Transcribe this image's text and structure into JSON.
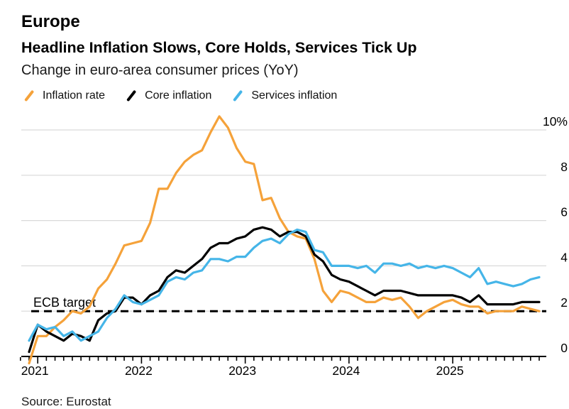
{
  "header": {
    "kicker": "Europe",
    "title": "Headline Inflation Slows, Core Holds, Services Tick Up",
    "subtitle": "Change in euro-area consumer prices (YoY)"
  },
  "legend": {
    "items": [
      {
        "label": "Inflation rate",
        "color": "#F5A23A"
      },
      {
        "label": "Core inflation",
        "color": "#000000"
      },
      {
        "label": "Services inflation",
        "color": "#45B5E8"
      }
    ]
  },
  "source": "Source: Eurostat",
  "colors": {
    "headline": "#F5A23A",
    "core": "#000000",
    "services": "#45B5E8",
    "gridline": "#d9d9d9",
    "axis": "#000000"
  },
  "chart_data": {
    "type": "line",
    "title": "Headline Inflation Slows, Core Holds, Services Tick Up",
    "subtitle": "Change in euro-area consumer prices (YoY)",
    "xlabel": "",
    "ylabel": "",
    "ylim": [
      -0.6,
      10.9
    ],
    "grid": "horizontal",
    "legend_position": "top",
    "y_axis": {
      "ticks": [
        {
          "value": 0,
          "label": "0"
        },
        {
          "value": 2,
          "label": "2"
        },
        {
          "value": 4,
          "label": "4"
        },
        {
          "value": 6,
          "label": "6"
        },
        {
          "value": 8,
          "label": "8"
        },
        {
          "value": 10,
          "label": "10%"
        }
      ]
    },
    "x_tick_labels": [
      "2021",
      "2022",
      "2023",
      "2024",
      "2025"
    ],
    "annotation": {
      "label": "ECB target",
      "value": 2
    },
    "x_months": [
      "2020-12",
      "2021-01",
      "2021-02",
      "2021-03",
      "2021-04",
      "2021-05",
      "2021-06",
      "2021-07",
      "2021-08",
      "2021-09",
      "2021-10",
      "2021-11",
      "2021-12",
      "2022-01",
      "2022-02",
      "2022-03",
      "2022-04",
      "2022-05",
      "2022-06",
      "2022-07",
      "2022-08",
      "2022-09",
      "2022-10",
      "2022-11",
      "2022-12",
      "2023-01",
      "2023-02",
      "2023-03",
      "2023-04",
      "2023-05",
      "2023-06",
      "2023-07",
      "2023-08",
      "2023-09",
      "2023-10",
      "2023-11",
      "2023-12",
      "2024-01",
      "2024-02",
      "2024-03",
      "2024-04",
      "2024-05",
      "2024-06",
      "2024-07",
      "2024-08",
      "2024-09",
      "2024-10",
      "2024-11",
      "2024-12",
      "2025-01",
      "2025-02",
      "2025-03",
      "2025-04",
      "2025-05",
      "2025-06",
      "2025-07",
      "2025-08",
      "2025-09",
      "2025-10",
      "2025-11"
    ],
    "series": [
      {
        "name": "Inflation rate",
        "color": "#F5A23A",
        "values": [
          -0.3,
          0.9,
          0.9,
          1.3,
          1.6,
          2.0,
          1.9,
          2.2,
          3.0,
          3.4,
          4.1,
          4.9,
          5.0,
          5.1,
          5.9,
          7.4,
          7.4,
          8.1,
          8.6,
          8.9,
          9.1,
          9.9,
          10.6,
          10.1,
          9.2,
          8.6,
          8.5,
          6.9,
          7.0,
          6.1,
          5.5,
          5.3,
          5.2,
          4.3,
          2.9,
          2.4,
          2.9,
          2.8,
          2.6,
          2.4,
          2.4,
          2.6,
          2.5,
          2.6,
          2.2,
          1.7,
          2.0,
          2.2,
          2.4,
          2.5,
          2.3,
          2.2,
          2.2,
          1.9,
          2.0,
          2.0,
          2.0,
          2.2,
          2.1,
          2.0
        ]
      },
      {
        "name": "Core inflation",
        "color": "#000000",
        "values": [
          0.2,
          1.4,
          1.1,
          0.9,
          0.7,
          1.0,
          0.9,
          0.7,
          1.6,
          1.9,
          2.0,
          2.6,
          2.6,
          2.3,
          2.7,
          2.9,
          3.5,
          3.8,
          3.7,
          4.0,
          4.3,
          4.8,
          5.0,
          5.0,
          5.2,
          5.3,
          5.6,
          5.7,
          5.6,
          5.3,
          5.5,
          5.5,
          5.3,
          4.5,
          4.2,
          3.6,
          3.4,
          3.3,
          3.1,
          2.9,
          2.7,
          2.9,
          2.9,
          2.9,
          2.8,
          2.7,
          2.7,
          2.7,
          2.7,
          2.7,
          2.6,
          2.4,
          2.7,
          2.3,
          2.3,
          2.3,
          2.3,
          2.4,
          2.4,
          2.4
        ]
      },
      {
        "name": "Services inflation",
        "color": "#45B5E8",
        "values": [
          0.7,
          1.4,
          1.2,
          1.3,
          0.9,
          1.1,
          0.7,
          0.9,
          1.1,
          1.7,
          2.1,
          2.7,
          2.4,
          2.3,
          2.5,
          2.7,
          3.3,
          3.5,
          3.4,
          3.7,
          3.8,
          4.3,
          4.3,
          4.2,
          4.4,
          4.4,
          4.8,
          5.1,
          5.2,
          5.0,
          5.4,
          5.6,
          5.5,
          4.7,
          4.6,
          4.0,
          4.0,
          4.0,
          3.9,
          4.0,
          3.7,
          4.1,
          4.1,
          4.0,
          4.1,
          3.9,
          4.0,
          3.9,
          4.0,
          3.9,
          3.7,
          3.5,
          3.9,
          3.2,
          3.3,
          3.2,
          3.1,
          3.2,
          3.4,
          3.5
        ]
      }
    ]
  }
}
